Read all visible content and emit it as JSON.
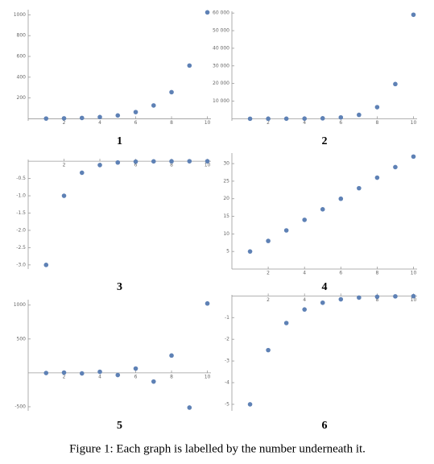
{
  "chart_data": [
    {
      "type": "scatter",
      "label": "1",
      "color": "#5e81b5",
      "x": [
        1,
        2,
        3,
        4,
        5,
        6,
        7,
        8,
        9,
        10
      ],
      "values": [
        2,
        4,
        8,
        16,
        32,
        64,
        128,
        256,
        512,
        1024
      ],
      "xlim": [
        0,
        10.2
      ],
      "ylim": [
        -20,
        1050
      ],
      "xticks": [
        2,
        4,
        6,
        8,
        10
      ],
      "yticks": [
        200,
        400,
        600,
        800,
        1000
      ]
    },
    {
      "type": "scatter",
      "label": "2",
      "color": "#5e81b5",
      "x": [
        1,
        2,
        3,
        4,
        5,
        6,
        7,
        8,
        9,
        10
      ],
      "values": [
        3,
        9,
        27,
        81,
        243,
        729,
        2187,
        6561,
        19683,
        59049
      ],
      "xlim": [
        0,
        10.2
      ],
      "ylim": [
        -1200,
        61000
      ],
      "xticks": [
        2,
        4,
        6,
        8,
        10
      ],
      "yticks": [
        {
          "value": 10000,
          "label": "10 000"
        },
        {
          "value": 20000,
          "label": "20 000"
        },
        {
          "value": 30000,
          "label": "30 000"
        },
        {
          "value": 40000,
          "label": "40 000"
        },
        {
          "value": 50000,
          "label": "50 000"
        },
        {
          "value": 60000,
          "label": "60 000"
        }
      ]
    },
    {
      "type": "scatter",
      "label": "3",
      "color": "#5e81b5",
      "x": [
        1,
        2,
        3,
        4,
        5,
        6,
        7,
        8,
        9,
        10
      ],
      "values": [
        -3,
        -1,
        -0.333,
        -0.111,
        -0.037,
        -0.012,
        -0.004,
        -0.001,
        0,
        0
      ],
      "xlim": [
        0,
        10.2
      ],
      "ylim": [
        -3.12,
        0.05
      ],
      "xticks": [
        2,
        4,
        6,
        8,
        10
      ],
      "yticks": [
        {
          "value": -3,
          "label": "-3.0"
        },
        -2.5,
        {
          "value": -2,
          "label": "-2.0"
        },
        -1.5,
        {
          "value": -1,
          "label": "-1.0"
        },
        -0.5
      ]
    },
    {
      "type": "scatter",
      "label": "4",
      "color": "#5e81b5",
      "x": [
        1,
        2,
        3,
        4,
        5,
        6,
        7,
        8,
        9,
        10
      ],
      "values": [
        5,
        8,
        11,
        14,
        17,
        20,
        23,
        26,
        29,
        32
      ],
      "xlim": [
        0,
        10.2
      ],
      "ylim": [
        0,
        33
      ],
      "xticks": [
        2,
        4,
        6,
        8,
        10
      ],
      "yticks": [
        5,
        10,
        15,
        20,
        25,
        30
      ]
    },
    {
      "type": "scatter",
      "label": "5",
      "color": "#5e81b5",
      "x": [
        1,
        2,
        3,
        4,
        5,
        6,
        7,
        8,
        9,
        10
      ],
      "values": [
        -2,
        4,
        -8,
        16,
        -32,
        64,
        -128,
        256,
        -512,
        1024
      ],
      "xlim": [
        0,
        10.2
      ],
      "ylim": [
        -560,
        1080
      ],
      "xticks": [
        2,
        4,
        6,
        8,
        10
      ],
      "yticks": [
        -500,
        500,
        1000
      ]
    },
    {
      "type": "scatter",
      "label": "6",
      "color": "#5e81b5",
      "x": [
        1,
        2,
        3,
        4,
        5,
        6,
        7,
        8,
        9,
        10
      ],
      "values": [
        -5,
        -2.5,
        -1.25,
        -0.625,
        -0.313,
        -0.156,
        -0.078,
        -0.039,
        -0.02,
        -0.01
      ],
      "xlim": [
        0,
        10.2
      ],
      "ylim": [
        -5.3,
        0.05
      ],
      "xticks": [
        2,
        4,
        6,
        8,
        10
      ],
      "yticks": [
        -5,
        -4,
        -3,
        -2,
        -1
      ]
    }
  ],
  "caption": "Figure 1: Each graph is labelled by the number underneath it."
}
